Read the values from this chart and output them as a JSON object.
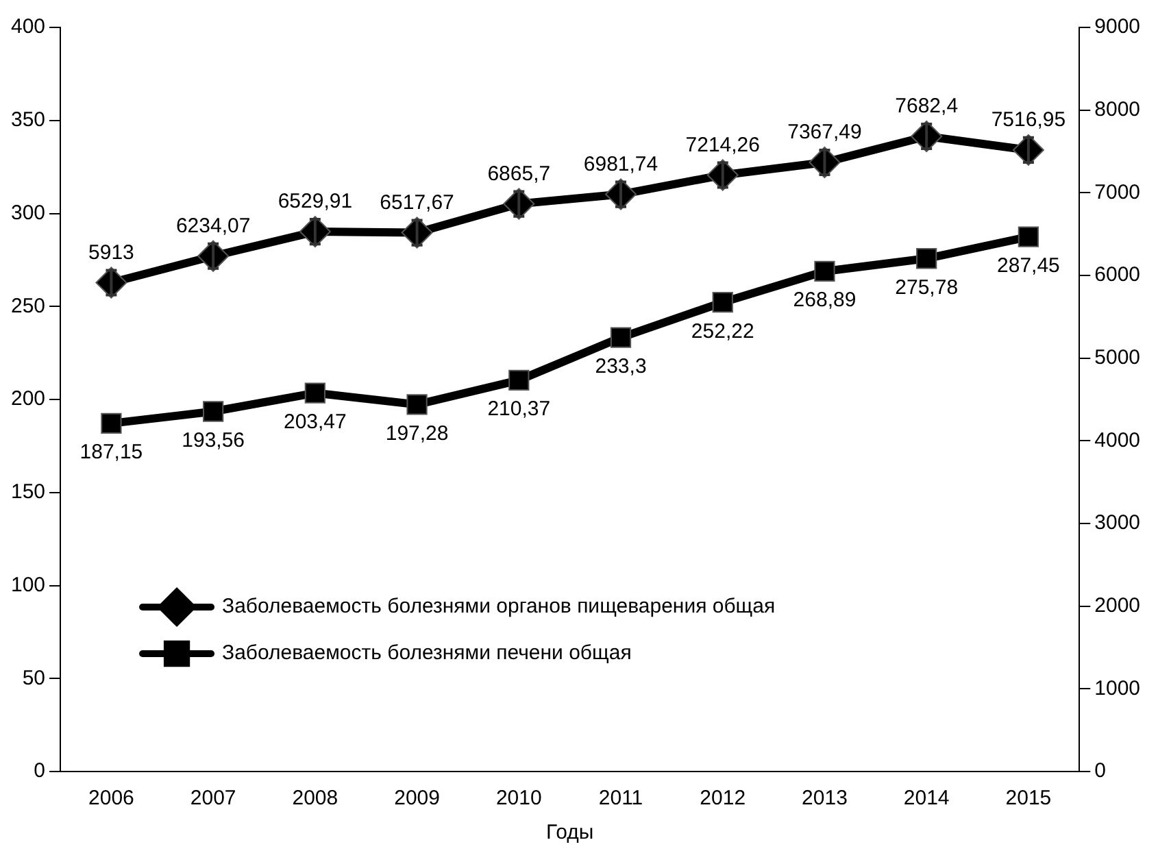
{
  "chart_data": {
    "type": "line",
    "xlabel": "Годы",
    "categories": [
      "2006",
      "2007",
      "2008",
      "2009",
      "2010",
      "2011",
      "2012",
      "2013",
      "2014",
      "2015"
    ],
    "series": [
      {
        "name": "Заболеваемость болезнями органов пищеварения общая",
        "color": "#000000",
        "axis": "y2",
        "marker": "diamond",
        "values": [
          5913,
          6234.07,
          6529.91,
          6517.67,
          6865.7,
          6981.74,
          7214.26,
          7367.49,
          7682.4,
          7516.95
        ],
        "errors": [
          150,
          150,
          150,
          150,
          150,
          150,
          150,
          150,
          150,
          150
        ],
        "value_labels": [
          "5913",
          "6234,07",
          "6529,91",
          "6517,67",
          "6865,7",
          "6981,74",
          "7214,26",
          "7367,49",
          "7682,4",
          "7516,95"
        ]
      },
      {
        "name": "Заболеваемость болезнями печени общая",
        "color": "#000000",
        "marker": "square",
        "values": [
          187.15,
          193.56,
          203.47,
          197.28,
          210.37,
          233.3,
          252.22,
          268.89,
          275.78,
          287.45
        ],
        "value_labels": [
          "187,15",
          "193,56",
          "203,47",
          "197,28",
          "210,37",
          "233,3",
          "252,22",
          "268,89",
          "275,78",
          "287,45"
        ]
      }
    ],
    "ylim": [
      0,
      400
    ],
    "yticks": [
      0,
      50,
      100,
      150,
      200,
      250,
      300,
      350,
      400
    ],
    "y2lim": [
      0,
      9000
    ],
    "y2ticks": [
      0,
      1000,
      2000,
      3000,
      4000,
      5000,
      6000,
      7000,
      8000,
      9000
    ],
    "grid": false,
    "legend": "bottom left",
    "line_style": "solid"
  }
}
